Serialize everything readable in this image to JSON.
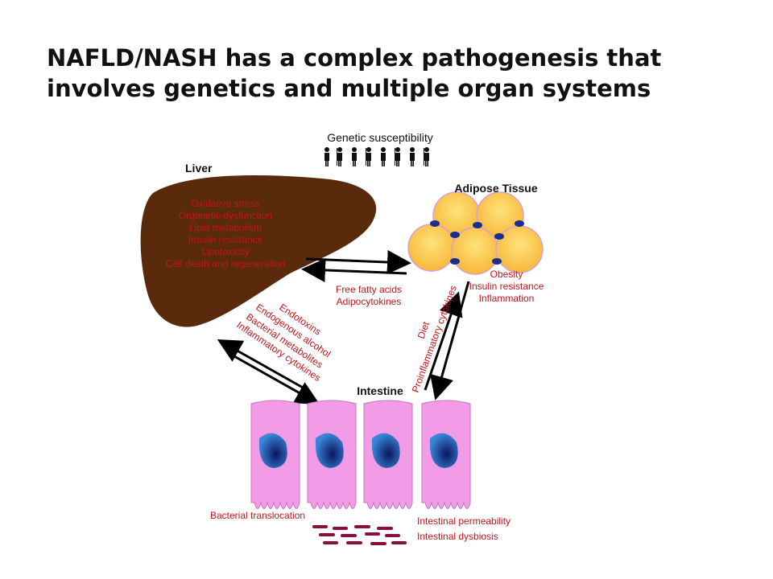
{
  "header": {
    "title_lines": [
      "NAFLD/NASH has a complex pathogenesis that",
      "involves genetics and multiple organ systems"
    ]
  },
  "diagram": {
    "genetic": "Genetic susceptibility",
    "liver": {
      "label": "Liver",
      "items": [
        "Oxidative stress",
        "Organelle dysfunction",
        "Lipid metabolism",
        "Insulin resistance",
        "Lipotoxicity",
        "Cell death and regeneration"
      ]
    },
    "adipose": {
      "label": "Adipose Tissue",
      "items": [
        "Obesity",
        "Insulin resistance",
        "Inflammation"
      ]
    },
    "liver_adipose": [
      "Free fatty acids",
      "Adipocytokines"
    ],
    "liver_intestine": [
      "Endotoxins",
      "Endogenous alcohol",
      "Bacterial metabolites",
      "Inflammatory cytokines"
    ],
    "adipose_intestine": [
      "Diet",
      "Proinflammatory cytokines"
    ],
    "intestine": {
      "label": "Intestine",
      "notes": [
        "Bacterial translocation",
        "Intestinal permeability",
        "Intestinal dysbiosis"
      ]
    }
  }
}
